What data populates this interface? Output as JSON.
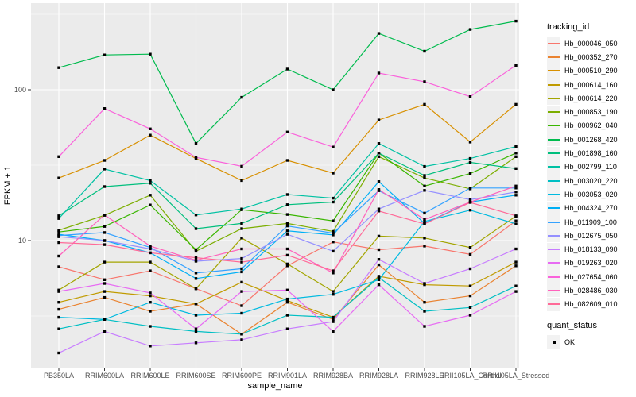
{
  "legend": {
    "tracking_title": "tracking_id",
    "quant_title": "quant_status",
    "quant_ok_label": "OK"
  },
  "colors": {
    "panel_background": "#EBEBEB",
    "gridline": "#FFFFFF",
    "tick_label": "#4D4D4D",
    "axis_title": "#000000",
    "marker": "#000000",
    "legend_key_background": "#F2F2F2"
  },
  "chart_data": {
    "type": "line",
    "xlabel": "sample_name",
    "ylabel": "FPKM + 1",
    "y_scale": "log10",
    "y_tick_values": [
      10,
      100
    ],
    "y_tick_labels": [
      "10",
      "100"
    ],
    "y_minor_values": [
      3.162,
      31.62,
      316.2
    ],
    "ylim": [
      1.55,
      320
    ],
    "grid": "on",
    "legend_position": "right",
    "marker": "black-square",
    "categories": [
      "PB350LA",
      "RRIM600LA",
      "RRIM600LE",
      "RRIM600SE",
      "RRIM600PE",
      "RRIM901LA",
      "RRIM928BA",
      "RRIM928LA",
      "RRIM928LE",
      "RRII105LA_Control",
      "RRII105LA_Stressed"
    ],
    "series": [
      {
        "name": "Hb_000046_050",
        "color": "#F8766D",
        "values": [
          6.7,
          5.5,
          6.3,
          4.8,
          3.7,
          6.8,
          9.8,
          8.7,
          9.2,
          8.1,
          13.5
        ]
      },
      {
        "name": "Hb_000352_270",
        "color": "#EA8331",
        "values": [
          3.5,
          4.2,
          3.4,
          3.8,
          2.4,
          3.9,
          3.0,
          6.9,
          3.9,
          4.3,
          6.8
        ]
      },
      {
        "name": "Hb_000510_290",
        "color": "#D89000",
        "values": [
          26,
          34,
          50,
          35,
          25,
          34,
          28,
          63,
          80,
          45,
          80
        ]
      },
      {
        "name": "Hb_000614_160",
        "color": "#C09B00",
        "values": [
          3.9,
          4.6,
          4.3,
          3.8,
          5.3,
          4.0,
          3.1,
          5.8,
          5.1,
          5.0,
          7.2
        ]
      },
      {
        "name": "Hb_000614_220",
        "color": "#A3A500",
        "values": [
          4.7,
          7.2,
          7.2,
          4.8,
          10.4,
          7.0,
          4.6,
          10.7,
          10.4,
          9.0,
          14.5
        ]
      },
      {
        "name": "Hb_000853_190",
        "color": "#7CAE00",
        "values": [
          11.7,
          14.7,
          20,
          8.5,
          12,
          13,
          11.5,
          36,
          26,
          22,
          36
        ]
      },
      {
        "name": "Hb_000962_040",
        "color": "#39B600",
        "values": [
          11.4,
          12.4,
          17.2,
          8.7,
          16,
          14.9,
          13.5,
          38,
          23,
          27.8,
          38
        ]
      },
      {
        "name": "Hb_001268_420",
        "color": "#00BB4E",
        "values": [
          140,
          170,
          172,
          44,
          89,
          137,
          100,
          236,
          180,
          251,
          285
        ]
      },
      {
        "name": "Hb_001898_160",
        "color": "#00BF7D",
        "values": [
          14.6,
          22.8,
          24,
          12,
          13,
          17.3,
          18,
          38,
          27,
          33,
          30
        ]
      },
      {
        "name": "Hb_002799_110",
        "color": "#00C1A3",
        "values": [
          14.0,
          29.8,
          25,
          14.8,
          16.2,
          20.2,
          19.1,
          44,
          31,
          35,
          42
        ]
      },
      {
        "name": "Hb_003020_220",
        "color": "#00BFC4",
        "values": [
          2.6,
          3.0,
          2.7,
          2.5,
          2.4,
          3.2,
          3.1,
          5.7,
          3.4,
          3.6,
          5.0
        ]
      },
      {
        "name": "Hb_003053_020",
        "color": "#00BAE0",
        "values": [
          3.1,
          3.0,
          3.9,
          3.2,
          3.3,
          4.1,
          4.4,
          5.5,
          13.4,
          15.9,
          12.9
        ]
      },
      {
        "name": "Hb_004324_270",
        "color": "#00B0F6",
        "values": [
          11.0,
          10.0,
          8.3,
          5.6,
          6.2,
          11.6,
          10.9,
          24.6,
          13.0,
          18.0,
          20.0
        ]
      },
      {
        "name": "Hb_011909_100",
        "color": "#35A2FF",
        "values": [
          10.8,
          11.3,
          9.0,
          6.1,
          6.5,
          12.5,
          11.2,
          21.4,
          15.2,
          22.3,
          22.3
        ]
      },
      {
        "name": "Hb_012675_050",
        "color": "#9590FF",
        "values": [
          10.6,
          10.0,
          8.8,
          7.3,
          7.6,
          11.0,
          8.5,
          16.2,
          21.5,
          18.7,
          21.0
        ]
      },
      {
        "name": "Hb_018133_090",
        "color": "#C77CFF",
        "values": [
          1.8,
          2.5,
          2.0,
          2.1,
          2.2,
          2.6,
          2.9,
          7.5,
          5.2,
          6.5,
          8.8
        ]
      },
      {
        "name": "Hb_019263_020",
        "color": "#E76BF3",
        "values": [
          4.6,
          5.2,
          4.5,
          2.6,
          4.6,
          4.7,
          2.5,
          5.1,
          2.7,
          3.2,
          4.6
        ]
      },
      {
        "name": "Hb_027654_060",
        "color": "#FA62DB",
        "values": [
          36,
          75,
          55,
          35.6,
          31.1,
          52.4,
          41.7,
          129,
          113,
          90,
          145
        ]
      },
      {
        "name": "Hb_028486_030",
        "color": "#FF62BC",
        "values": [
          7.9,
          14.8,
          9.2,
          7.4,
          8.8,
          8.8,
          6.1,
          21.8,
          13.8,
          18.0,
          23
        ]
      },
      {
        "name": "Hb_082609_010",
        "color": "#FF6A98",
        "values": [
          9.7,
          9.4,
          8.3,
          7.7,
          7.2,
          8.0,
          6.3,
          15.7,
          12.9,
          17.9,
          14.6
        ]
      }
    ]
  }
}
